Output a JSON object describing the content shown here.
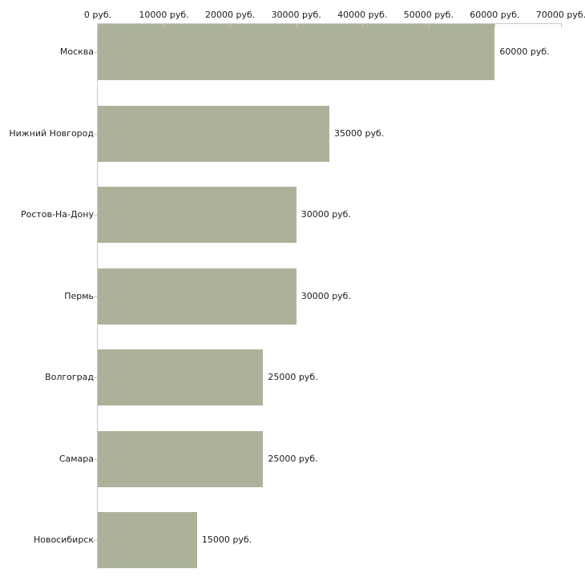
{
  "chart_data": {
    "type": "bar",
    "orientation": "horizontal",
    "title": "",
    "categories": [
      "Москва",
      "Нижний Новгород",
      "Ростов-На-Дону",
      "Пермь",
      "Волгоград",
      "Самара",
      "Новосибирск"
    ],
    "values": [
      60000,
      35000,
      30000,
      30000,
      25000,
      25000,
      15000
    ],
    "value_labels": [
      "60000 руб.",
      "35000 руб.",
      "30000 руб.",
      "30000 руб.",
      "25000 руб.",
      "25000 руб.",
      "15000 руб."
    ],
    "x_axis": {
      "position": "top",
      "min": 0,
      "max": 70000,
      "ticks": [
        0,
        10000,
        20000,
        30000,
        40000,
        50000,
        60000,
        70000
      ],
      "tick_labels": [
        "0 руб.",
        "10000 руб.",
        "20000 руб.",
        "30000 руб.",
        "40000 руб.",
        "50000 руб.",
        "60000 руб.",
        "70000 руб."
      ]
    },
    "grid": false,
    "legend": "none",
    "colors": {
      "bar": "#abb299",
      "axis": "#c9c9c9",
      "tick": "#c2c7b0",
      "text": "#1c1c1c",
      "background": "#ffffff"
    }
  }
}
